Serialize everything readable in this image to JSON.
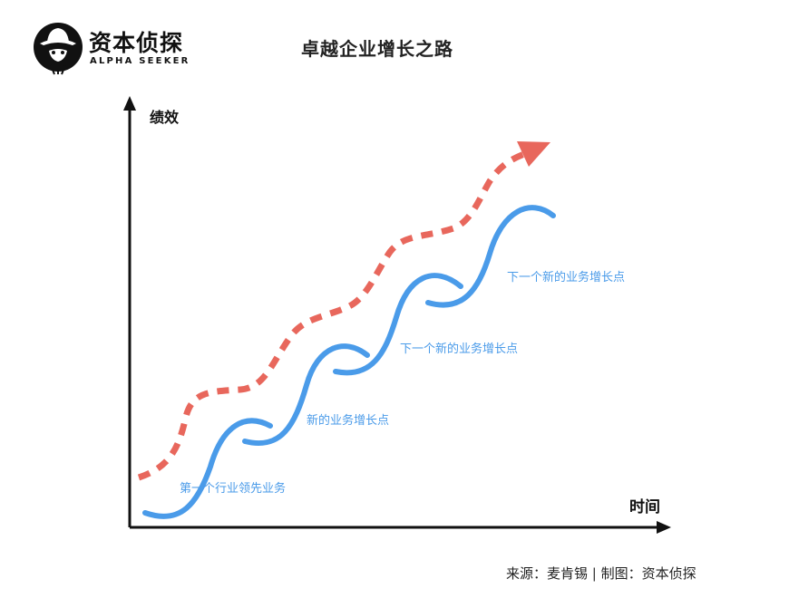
{
  "logo": {
    "name": "资本侦探",
    "subtitle": "ALPHA SEEKER"
  },
  "title": "卓越企业增长之路",
  "axes": {
    "y_label": "绩效",
    "x_label": "时间"
  },
  "stages": [
    "第一个行业领先业务",
    "新的业务增长点",
    "下一个新的业务增长点",
    "下一个新的业务增长点"
  ],
  "source": "来源：麦肯锡 | 制图：资本侦探",
  "colors": {
    "curve": "#4a9be9",
    "trend": "#e8675c",
    "axis": "#111111"
  }
}
